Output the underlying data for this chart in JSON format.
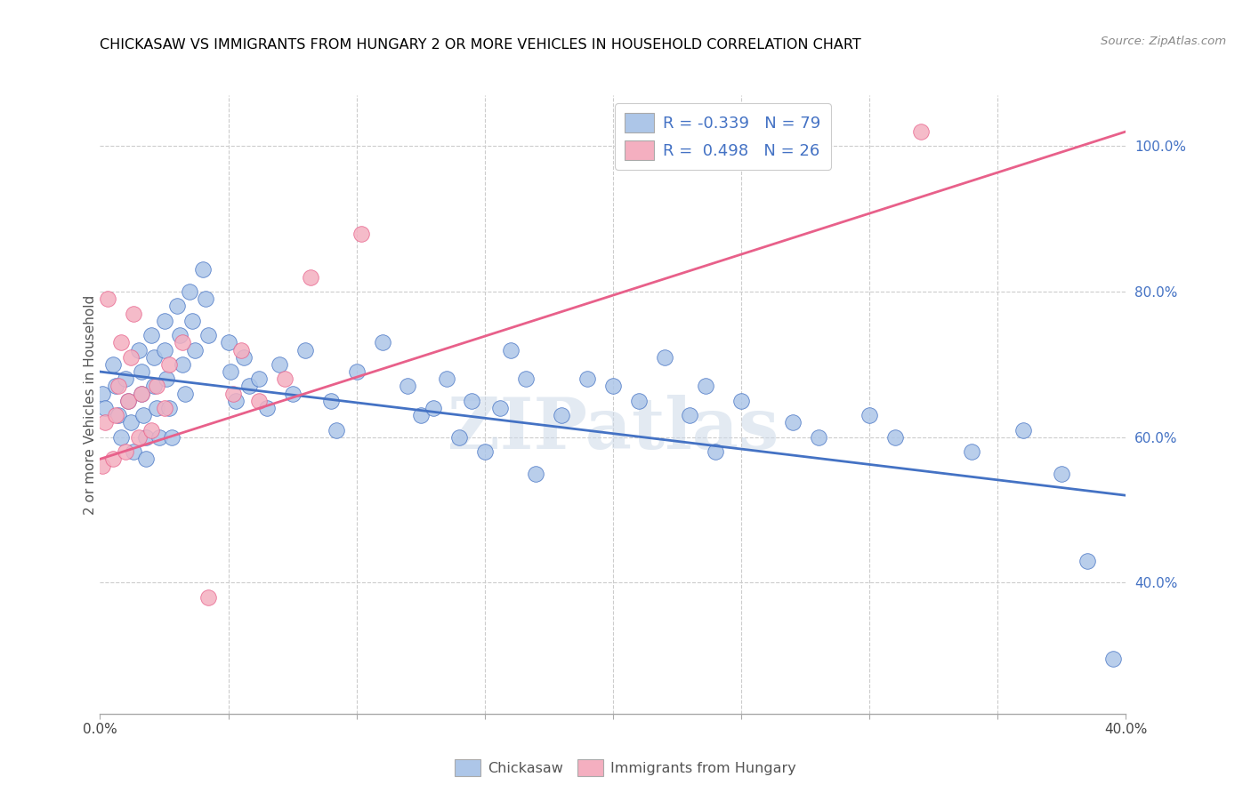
{
  "title": "CHICKASAW VS IMMIGRANTS FROM HUNGARY 2 OR MORE VEHICLES IN HOUSEHOLD CORRELATION CHART",
  "source": "Source: ZipAtlas.com",
  "ylabel": "2 or more Vehicles in Household",
  "x_min": 0.0,
  "x_max": 0.4,
  "y_min": 0.22,
  "y_max": 1.07,
  "x_tick_positions": [
    0.0,
    0.05,
    0.1,
    0.15,
    0.2,
    0.25,
    0.3,
    0.35,
    0.4
  ],
  "x_tick_labels": [
    "0.0%",
    "",
    "",
    "",
    "",
    "",
    "",
    "",
    "40.0%"
  ],
  "y_ticks_right": [
    0.4,
    0.6,
    0.8,
    1.0
  ],
  "y_tick_labels_right": [
    "40.0%",
    "60.0%",
    "80.0%",
    "100.0%"
  ],
  "chickasaw_color": "#adc6e8",
  "hungary_color": "#f4afc0",
  "chickasaw_line_color": "#4472c4",
  "hungary_line_color": "#e8608a",
  "watermark": "ZIPatlas",
  "chickasaw_label": "Chickasaw",
  "hungary_label": "Immigrants from Hungary",
  "chickasaw_scatter_x": [
    0.001,
    0.002,
    0.005,
    0.006,
    0.007,
    0.008,
    0.01,
    0.011,
    0.012,
    0.013,
    0.015,
    0.016,
    0.016,
    0.017,
    0.018,
    0.018,
    0.02,
    0.021,
    0.021,
    0.022,
    0.023,
    0.025,
    0.025,
    0.026,
    0.027,
    0.028,
    0.03,
    0.031,
    0.032,
    0.033,
    0.035,
    0.036,
    0.037,
    0.04,
    0.041,
    0.042,
    0.05,
    0.051,
    0.053,
    0.056,
    0.058,
    0.062,
    0.065,
    0.07,
    0.075,
    0.08,
    0.09,
    0.092,
    0.1,
    0.11,
    0.12,
    0.125,
    0.13,
    0.135,
    0.14,
    0.145,
    0.15,
    0.156,
    0.16,
    0.166,
    0.17,
    0.18,
    0.19,
    0.2,
    0.21,
    0.22,
    0.23,
    0.236,
    0.24,
    0.25,
    0.27,
    0.28,
    0.3,
    0.31,
    0.34,
    0.36,
    0.375,
    0.385,
    0.395
  ],
  "chickasaw_scatter_y": [
    0.66,
    0.64,
    0.7,
    0.67,
    0.63,
    0.6,
    0.68,
    0.65,
    0.62,
    0.58,
    0.72,
    0.69,
    0.66,
    0.63,
    0.6,
    0.57,
    0.74,
    0.71,
    0.67,
    0.64,
    0.6,
    0.76,
    0.72,
    0.68,
    0.64,
    0.6,
    0.78,
    0.74,
    0.7,
    0.66,
    0.8,
    0.76,
    0.72,
    0.83,
    0.79,
    0.74,
    0.73,
    0.69,
    0.65,
    0.71,
    0.67,
    0.68,
    0.64,
    0.7,
    0.66,
    0.72,
    0.65,
    0.61,
    0.69,
    0.73,
    0.67,
    0.63,
    0.64,
    0.68,
    0.6,
    0.65,
    0.58,
    0.64,
    0.72,
    0.68,
    0.55,
    0.63,
    0.68,
    0.67,
    0.65,
    0.71,
    0.63,
    0.67,
    0.58,
    0.65,
    0.62,
    0.6,
    0.63,
    0.6,
    0.58,
    0.61,
    0.55,
    0.43,
    0.295
  ],
  "hungary_scatter_x": [
    0.001,
    0.002,
    0.003,
    0.005,
    0.006,
    0.007,
    0.008,
    0.01,
    0.011,
    0.012,
    0.013,
    0.015,
    0.016,
    0.02,
    0.022,
    0.025,
    0.027,
    0.032,
    0.042,
    0.052,
    0.055,
    0.062,
    0.072,
    0.082,
    0.102,
    0.32
  ],
  "hungary_scatter_y": [
    0.56,
    0.62,
    0.79,
    0.57,
    0.63,
    0.67,
    0.73,
    0.58,
    0.65,
    0.71,
    0.77,
    0.6,
    0.66,
    0.61,
    0.67,
    0.64,
    0.7,
    0.73,
    0.38,
    0.66,
    0.72,
    0.65,
    0.68,
    0.82,
    0.88,
    1.02
  ],
  "chickasaw_trend_x": [
    0.0,
    0.4
  ],
  "chickasaw_trend_y": [
    0.69,
    0.52
  ],
  "hungary_trend_x": [
    0.0,
    0.4
  ],
  "hungary_trend_y": [
    0.57,
    1.02
  ]
}
